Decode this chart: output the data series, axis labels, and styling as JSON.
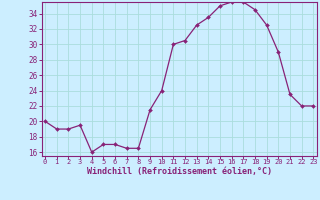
{
  "x": [
    0,
    1,
    2,
    3,
    4,
    5,
    6,
    7,
    8,
    9,
    10,
    11,
    12,
    13,
    14,
    15,
    16,
    17,
    18,
    19,
    20,
    21,
    22,
    23
  ],
  "y": [
    20.0,
    19.0,
    19.0,
    19.5,
    16.0,
    17.0,
    17.0,
    16.5,
    16.5,
    21.5,
    24.0,
    30.0,
    30.5,
    32.5,
    33.5,
    35.0,
    35.5,
    35.5,
    34.5,
    32.5,
    29.0,
    23.5,
    22.0,
    22.0
  ],
  "line_color": "#882277",
  "marker_color": "#882277",
  "bg_color": "#cceeff",
  "grid_color": "#aadddd",
  "axis_color": "#882277",
  "tick_color": "#882277",
  "xlabel": "Windchill (Refroidissement éolien,°C)",
  "ylim": [
    15.5,
    35.5
  ],
  "yticks": [
    16,
    18,
    20,
    22,
    24,
    26,
    28,
    30,
    32,
    34
  ],
  "xticks": [
    0,
    1,
    2,
    3,
    4,
    5,
    6,
    7,
    8,
    9,
    10,
    11,
    12,
    13,
    14,
    15,
    16,
    17,
    18,
    19,
    20,
    21,
    22,
    23
  ],
  "xlim": [
    -0.3,
    23.3
  ]
}
